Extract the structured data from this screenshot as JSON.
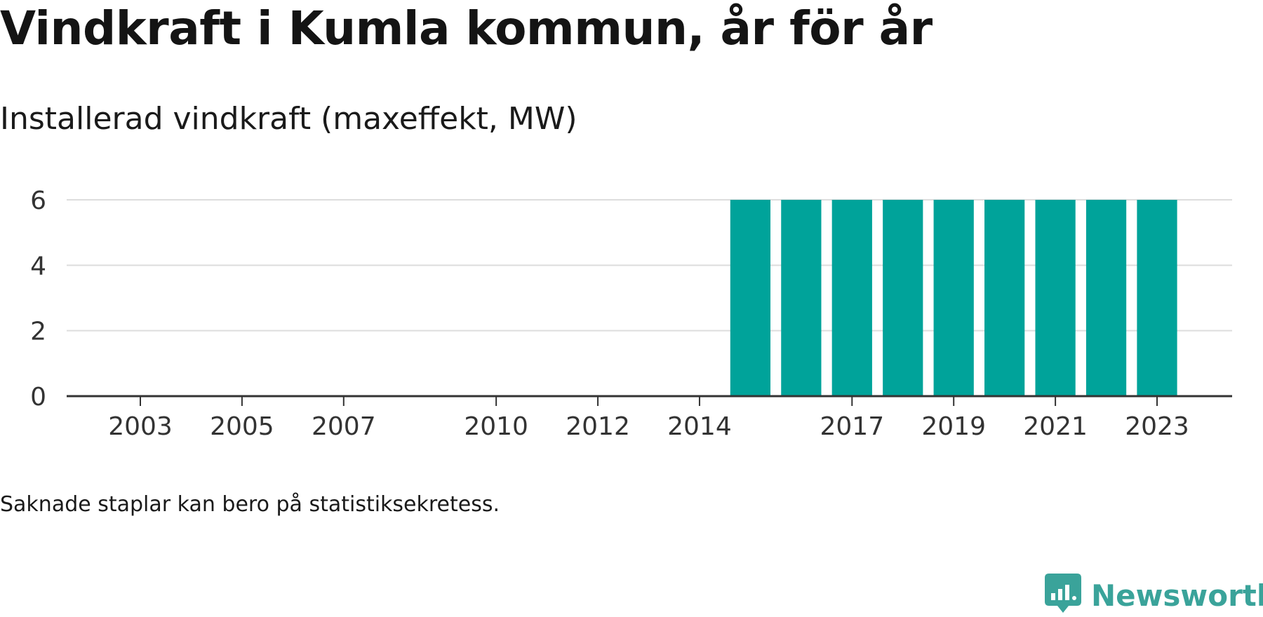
{
  "header": {
    "title": "Vindkraft i Kumla kommun, år för år",
    "subtitle": "Installerad vindkraft (maxeffekt, MW)"
  },
  "chart_data": {
    "type": "bar",
    "title": "Vindkraft i Kumla kommun, år för år",
    "subtitle": "Installerad vindkraft (maxeffekt, MW)",
    "xlabel": "",
    "ylabel": "",
    "categories": [
      "2002",
      "2003",
      "2004",
      "2005",
      "2006",
      "2007",
      "2008",
      "2009",
      "2010",
      "2011",
      "2012",
      "2013",
      "2014",
      "2015",
      "2016",
      "2017",
      "2018",
      "2019",
      "2020",
      "2021",
      "2022",
      "2023",
      "2024"
    ],
    "values": [
      null,
      null,
      null,
      null,
      null,
      null,
      null,
      null,
      null,
      null,
      null,
      null,
      null,
      6,
      6,
      6,
      6,
      6,
      6,
      6,
      6,
      6,
      null
    ],
    "x_tick_labels": [
      "2003",
      "2005",
      "2007",
      "2010",
      "2012",
      "2014",
      "2017",
      "2019",
      "2021",
      "2023"
    ],
    "y_ticks": [
      0,
      2,
      4,
      6
    ],
    "ylim": [
      0,
      6
    ],
    "grid": true,
    "bar_color": "#00a39a"
  },
  "footnote": "Saknade staplar kan bero på statistiksekretess.",
  "brand": {
    "name": "Newsworthy",
    "icon": "newsworthy-logo-icon",
    "color": "#3aa39a"
  }
}
